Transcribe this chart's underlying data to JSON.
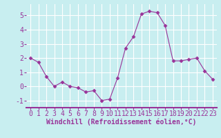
{
  "x": [
    0,
    1,
    2,
    3,
    4,
    5,
    6,
    7,
    8,
    9,
    10,
    11,
    12,
    13,
    14,
    15,
    16,
    17,
    18,
    19,
    20,
    21,
    22,
    23
  ],
  "y": [
    2.0,
    1.7,
    0.7,
    0.0,
    0.3,
    0.0,
    -0.1,
    -0.4,
    -0.3,
    -1.0,
    -0.9,
    0.6,
    2.7,
    3.5,
    5.1,
    5.3,
    5.2,
    4.3,
    1.8,
    1.8,
    1.9,
    2.0,
    1.1,
    0.5
  ],
  "line_color": "#993399",
  "marker": "D",
  "marker_size": 2.5,
  "background_color": "#c8eef0",
  "grid_color": "#ffffff",
  "axis_color": "#993399",
  "xlabel": "Windchill (Refroidissement éolien,°C)",
  "xlabel_fontsize": 7,
  "tick_fontsize": 7,
  "ylim": [
    -1.5,
    5.8
  ],
  "xlim": [
    -0.5,
    23.5
  ],
  "yticks": [
    -1,
    0,
    1,
    2,
    3,
    4,
    5
  ],
  "xticks": [
    0,
    1,
    2,
    3,
    4,
    5,
    6,
    7,
    8,
    9,
    10,
    11,
    12,
    13,
    14,
    15,
    16,
    17,
    18,
    19,
    20,
    21,
    22,
    23
  ]
}
